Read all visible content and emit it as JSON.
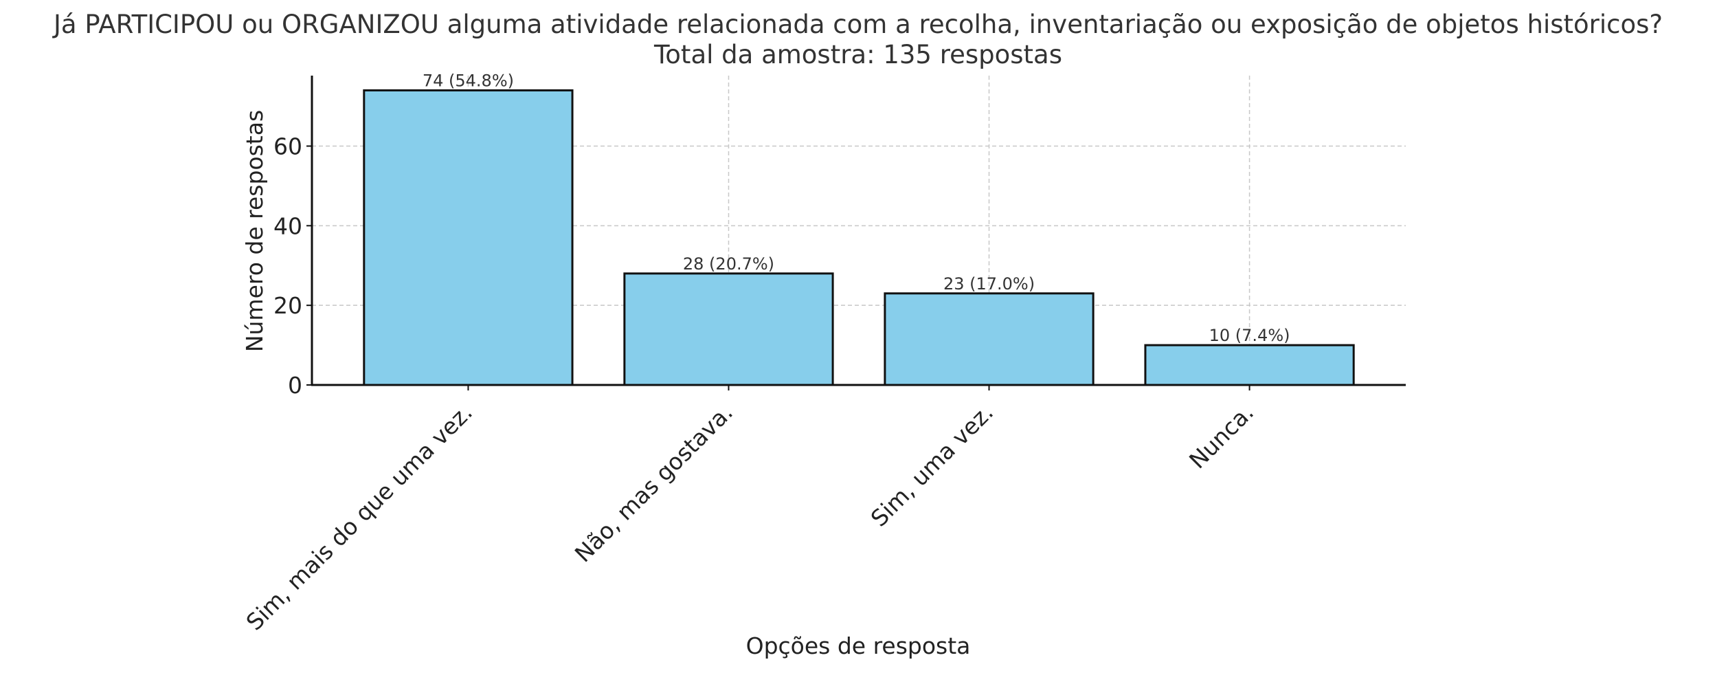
{
  "chart_data": {
    "type": "bar",
    "title": "Já PARTICIPOU ou ORGANIZOU alguma atividade relacionada com a recolha, inventariação ou exposição de objetos históricos?",
    "subtitle": "Total da amostra: 135 respostas",
    "xlabel": "Opções de resposta",
    "ylabel": "Número de respostas",
    "categories": [
      "Sim, mais do que uma vez.",
      "Não, mas gostava.",
      "Sim, uma vez.",
      "Nunca."
    ],
    "values": [
      74,
      28,
      23,
      10
    ],
    "data_labels": [
      "74 (54.8%)",
      "28 (20.7%)",
      "23 (17.0%)",
      "10 (7.4%)"
    ],
    "ylim": [
      0,
      77.7
    ],
    "yticks": [
      0,
      20,
      40,
      60
    ],
    "grid": true,
    "colors": {
      "bar_fill": "#87CEEB",
      "bar_edge": "#111111",
      "grid": "#c8c8c8",
      "axis": "#111111"
    }
  }
}
